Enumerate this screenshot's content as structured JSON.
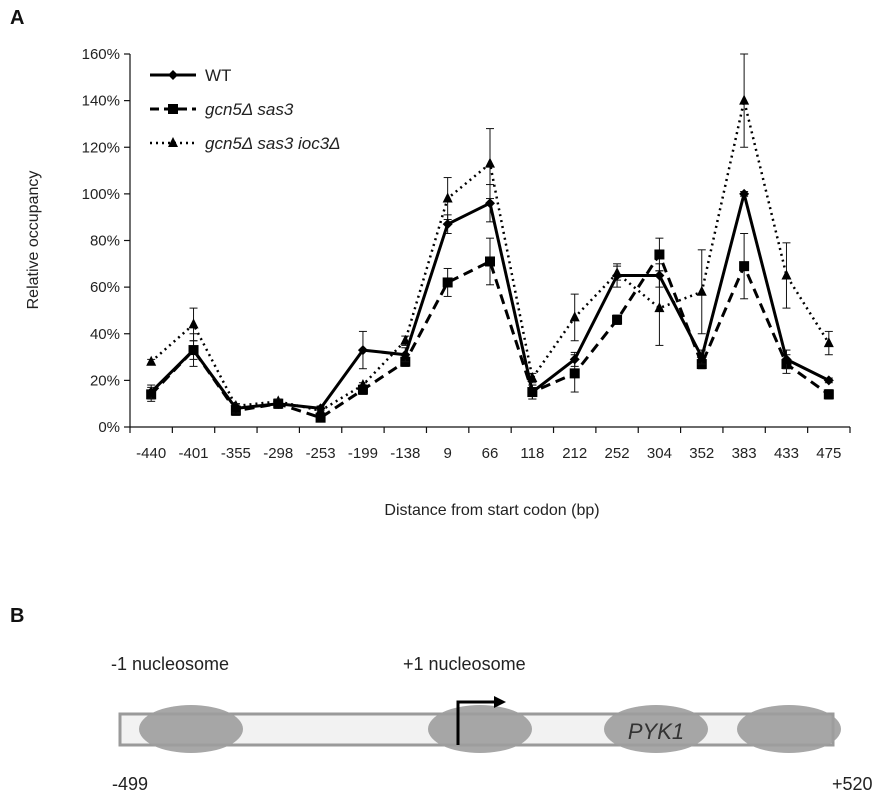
{
  "panel_a_label": "A",
  "panel_b_label": "B",
  "chart_data": {
    "type": "line",
    "xlabel": "Distance from start codon (bp)",
    "ylabel": "Relative occupancy",
    "ylim": [
      0,
      160
    ],
    "y_ticks": [
      "0%",
      "20%",
      "40%",
      "60%",
      "80%",
      "100%",
      "120%",
      "140%",
      "160%"
    ],
    "y_tick_values": [
      0,
      20,
      40,
      60,
      80,
      100,
      120,
      140,
      160
    ],
    "categories": [
      "-440",
      "-401",
      "-355",
      "-298",
      "-253",
      "-199",
      "-138",
      "9",
      "66",
      "118",
      "212",
      "252",
      "304",
      "352",
      "383",
      "433",
      "475"
    ],
    "grid": false,
    "legend_position": "top-left",
    "series": [
      {
        "name": "WT",
        "style": "solid",
        "marker": "diamond",
        "color": "#000000",
        "values": [
          15,
          33,
          8,
          10,
          8,
          33,
          31,
          87,
          96,
          15,
          29,
          65,
          65,
          30,
          100,
          29,
          20
        ],
        "errors": [
          3,
          4,
          2,
          2,
          1,
          8,
          3,
          4,
          8,
          3,
          3,
          5,
          5,
          3,
          1,
          4,
          1
        ]
      },
      {
        "name": "gcn5Δ sas3",
        "style": "dashed",
        "marker": "square",
        "color": "#000000",
        "values": [
          14,
          33,
          7,
          10,
          4,
          16,
          28,
          62,
          71,
          15,
          23,
          46,
          74,
          27,
          69,
          27,
          14
        ],
        "errors": [
          3,
          7,
          2,
          2,
          1,
          2,
          2,
          6,
          10,
          3,
          8,
          2,
          7,
          2,
          14,
          4,
          2
        ]
      },
      {
        "name": "gcn5Δ sas3 ioc3Δ",
        "style": "dotted",
        "marker": "triangle",
        "color": "#000000",
        "values": [
          28,
          44,
          9,
          11,
          7,
          18,
          37,
          98,
          113,
          21,
          47,
          66,
          51,
          58,
          140,
          65,
          36
        ],
        "errors": [
          1,
          7,
          1,
          1,
          1,
          1,
          2,
          9,
          15,
          2,
          10,
          3,
          16,
          18,
          20,
          14,
          5
        ]
      }
    ]
  },
  "diagram": {
    "left_label": "-1 nucleosome",
    "right_label": "+1 nucleosome",
    "gene_label": "PYK1",
    "start_coord": "-499",
    "end_coord": "+520"
  }
}
